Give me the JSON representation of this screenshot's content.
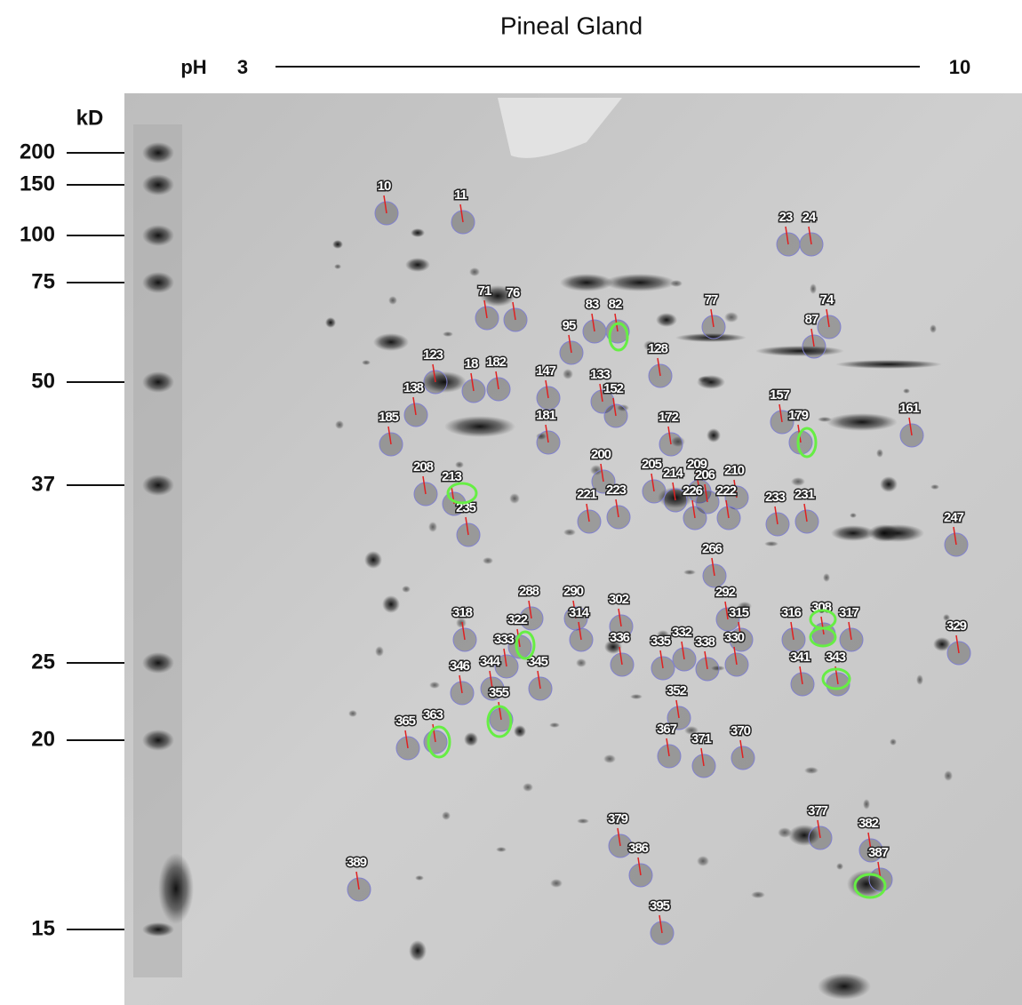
{
  "header": {
    "title": "Pineal Gland",
    "ph_label": "pH",
    "ph_start": "3",
    "ph_end": "10"
  },
  "axis": {
    "unit": "kD",
    "markers": [
      "200",
      "150",
      "100",
      "75",
      "50",
      "37",
      "25",
      "20",
      "15"
    ]
  },
  "spots": [
    "10",
    "11",
    "23",
    "24",
    "71",
    "76",
    "83",
    "82",
    "95",
    "77",
    "74",
    "87",
    "128",
    "123",
    "18",
    "182",
    "147",
    "133",
    "152",
    "138",
    "157",
    "179",
    "161",
    "185",
    "181",
    "172",
    "200",
    "205",
    "214",
    "209",
    "206",
    "210",
    "208",
    "213",
    "235",
    "221",
    "223",
    "226",
    "222",
    "233",
    "231",
    "247",
    "266",
    "288",
    "290",
    "314",
    "302",
    "292",
    "315",
    "316",
    "308",
    "317",
    "318",
    "322",
    "333",
    "336",
    "335",
    "332",
    "338",
    "330",
    "329",
    "341",
    "343",
    "346",
    "344",
    "345",
    "352",
    "355",
    "363",
    "365",
    "367",
    "371",
    "370",
    "379",
    "377",
    "382",
    "386",
    "387",
    "389",
    "395"
  ]
}
